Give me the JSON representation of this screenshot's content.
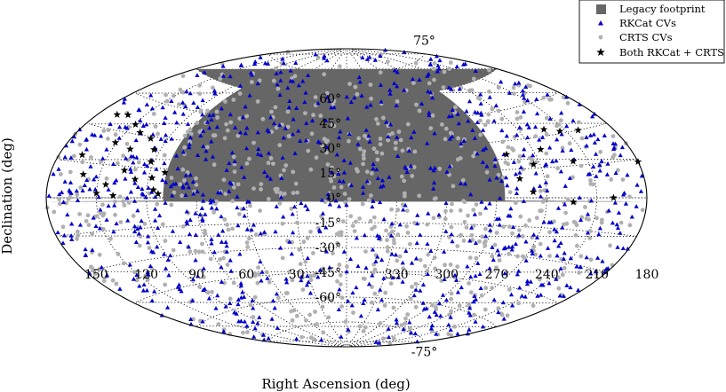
{
  "chart_data": {
    "type": "scatter",
    "projection": "aitoff",
    "title": "",
    "xlabel": "Right Ascension (deg)",
    "ylabel": "Declination (deg)",
    "ra_tick_labels": [
      "330",
      "300",
      "270",
      "240",
      "210",
      "180",
      "150",
      "120",
      "90",
      "60",
      "30"
    ],
    "dec_tick_labels": [
      "-75°",
      "-60°",
      "-45°",
      "-30°",
      "-15°",
      "0°",
      "15°",
      "30°",
      "45°",
      "60°",
      "75°"
    ],
    "grid": true,
    "legend_position": "top-right",
    "series": [
      {
        "name": "Legacy footprint",
        "marker": "filled-region",
        "color": "#666666",
        "region": {
          "ra_range": [
            110,
            265
          ],
          "dec_range": [
            -1.5,
            60
          ]
        }
      },
      {
        "name": "RKCat CVs",
        "marker": "triangle",
        "color": "#0000cc",
        "count_estimate": 900
      },
      {
        "name": "CRTS CVs",
        "marker": "circle",
        "color": "#b0b0b0",
        "count_estimate": 750
      },
      {
        "name": "Both RKCat + CRTS",
        "marker": "star",
        "color": "#000000",
        "points": [
          [
            223,
            33
          ],
          [
            214,
            31
          ],
          [
            202,
            30
          ],
          [
            168,
            36
          ],
          [
            161,
            37
          ],
          [
            149,
            34
          ],
          [
            141,
            31
          ],
          [
            131,
            29
          ],
          [
            151,
            25
          ],
          [
            139,
            23
          ],
          [
            124,
            24
          ],
          [
            122,
            18
          ],
          [
            111,
            13
          ],
          [
            235,
            24
          ],
          [
            219,
            17
          ],
          [
            255,
            10
          ],
          [
            248,
            3
          ],
          [
            224,
            -2
          ],
          [
            200,
            0
          ],
          [
            180,
            14
          ],
          [
            166,
            18
          ],
          [
            160,
            10
          ],
          [
            145,
            6
          ],
          [
            136,
            13
          ],
          [
            128,
            9
          ],
          [
            118,
            10
          ],
          [
            116,
            4
          ],
          [
            113,
            2
          ],
          [
            150,
            2
          ],
          [
            140,
            1
          ],
          [
            258,
            23
          ],
          [
            244,
            17
          ]
        ]
      }
    ]
  }
}
